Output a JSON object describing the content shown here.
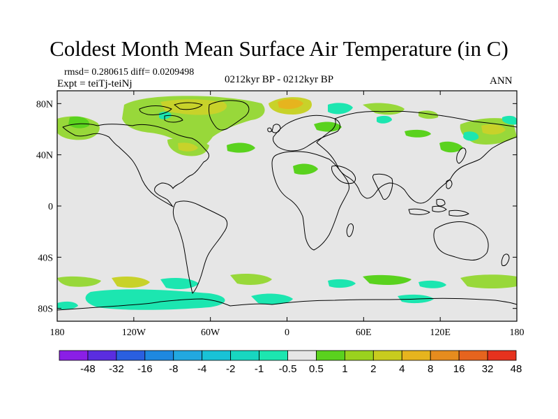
{
  "title": "Coldest Month Mean Surface Air Temperature (in C)",
  "stats_line": "rmsd= 0.280615 diff= 0.0209498",
  "expt_line": "Expt = teiTj-teiNj",
  "period_label": "0212kyr BP - 0212kyr BP",
  "season_label": "ANN",
  "map": {
    "lon_range": [
      -180,
      180
    ],
    "lat_range": [
      -90,
      90
    ],
    "x_ticks": [
      {
        "value": -180,
        "label": "180"
      },
      {
        "value": -120,
        "label": "120W"
      },
      {
        "value": -60,
        "label": "60W"
      },
      {
        "value": 0,
        "label": "0"
      },
      {
        "value": 60,
        "label": "60E"
      },
      {
        "value": 120,
        "label": "120E"
      },
      {
        "value": 180,
        "label": "180"
      }
    ],
    "y_ticks": [
      {
        "value": 80,
        "label": "80N"
      },
      {
        "value": 40,
        "label": "40N"
      },
      {
        "value": 0,
        "label": "0"
      },
      {
        "value": -40,
        "label": "40S"
      },
      {
        "value": -80,
        "label": "80S"
      }
    ],
    "background_color": "#e6e6e6"
  },
  "colorbar": {
    "labels": [
      "-48",
      "-32",
      "-16",
      "-8",
      "-4",
      "-2",
      "-1",
      "-0.5",
      "0.5",
      "1",
      "2",
      "4",
      "8",
      "16",
      "32",
      "48"
    ],
    "colors": [
      "#8a1fe6",
      "#5a2de0",
      "#2a5fe0",
      "#1e88e0",
      "#22a8e0",
      "#19c2d6",
      "#18d6c0",
      "#1ce6b0",
      "#e6e6e6",
      "#5ad21e",
      "#9ad21e",
      "#c8cc1e",
      "#e6b41e",
      "#e68c1e",
      "#e6641e",
      "#e6321e"
    ]
  }
}
